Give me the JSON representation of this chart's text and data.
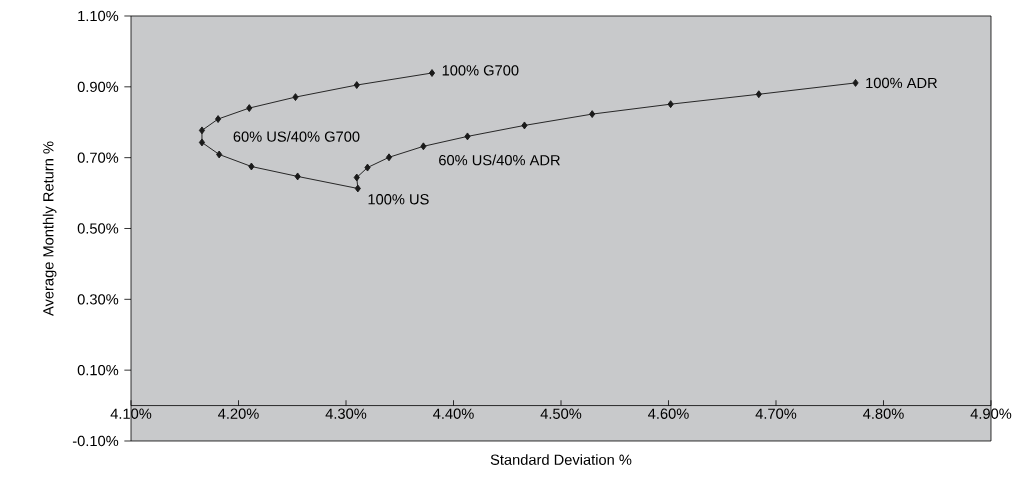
{
  "chart_data": {
    "type": "line",
    "xlabel": "Standard Deviation %",
    "ylabel": "Average Monthly Return %",
    "x": [
      4.38,
      4.31,
      4.253,
      4.21,
      4.181,
      4.166,
      4.166,
      4.182,
      4.212,
      4.255,
      4.311,
      4.31,
      4.32,
      4.34,
      4.372,
      4.413,
      4.466,
      4.529,
      4.602,
      4.684,
      4.774
    ],
    "series": [
      {
        "color": "#1a1a1a",
        "values": [
          0.939,
          0.905,
          0.871,
          0.84,
          0.809,
          0.777,
          0.743,
          0.709,
          0.675,
          0.647,
          0.613,
          0.644,
          0.672,
          0.701,
          0.732,
          0.76,
          0.791,
          0.823,
          0.851,
          0.879,
          0.911
        ]
      }
    ],
    "marker": "diamond",
    "line_style": "solid",
    "xlim": [
      4.1,
      4.9
    ],
    "ylim": [
      -0.1,
      1.1
    ],
    "xticks": [
      {
        "value": 4.1,
        "label": "4.10%"
      },
      {
        "value": 4.2,
        "label": "4.20%"
      },
      {
        "value": 4.3,
        "label": "4.30%"
      },
      {
        "value": 4.4,
        "label": "4.40%"
      },
      {
        "value": 4.5,
        "label": "4.50%"
      },
      {
        "value": 4.6,
        "label": "4.60%"
      },
      {
        "value": 4.7,
        "label": "4.70%"
      },
      {
        "value": 4.8,
        "label": "4.80%"
      },
      {
        "value": 4.9,
        "label": "4.90%"
      }
    ],
    "yticks": [
      {
        "value": -0.1,
        "label": "-0.10%"
      },
      {
        "value": 0.1,
        "label": "0.10%"
      },
      {
        "value": 0.3,
        "label": "0.30%"
      },
      {
        "value": 0.5,
        "label": "0.50%"
      },
      {
        "value": 0.7,
        "label": "0.70%"
      },
      {
        "value": 0.9,
        "label": "0.90%"
      },
      {
        "value": 1.1,
        "label": "1.10%"
      }
    ],
    "annotations": [
      {
        "text": "100% G700",
        "x": 4.38,
        "y": 0.939
      },
      {
        "text": "60% US/40% G700",
        "x": 4.166,
        "y": 0.76
      },
      {
        "text": "100% US",
        "x": 4.311,
        "y": 0.613
      },
      {
        "text": "60% US/40% ADR",
        "x": 4.372,
        "y": 0.732
      },
      {
        "text": "100% ADR",
        "x": 4.774,
        "y": 0.911
      }
    ]
  }
}
